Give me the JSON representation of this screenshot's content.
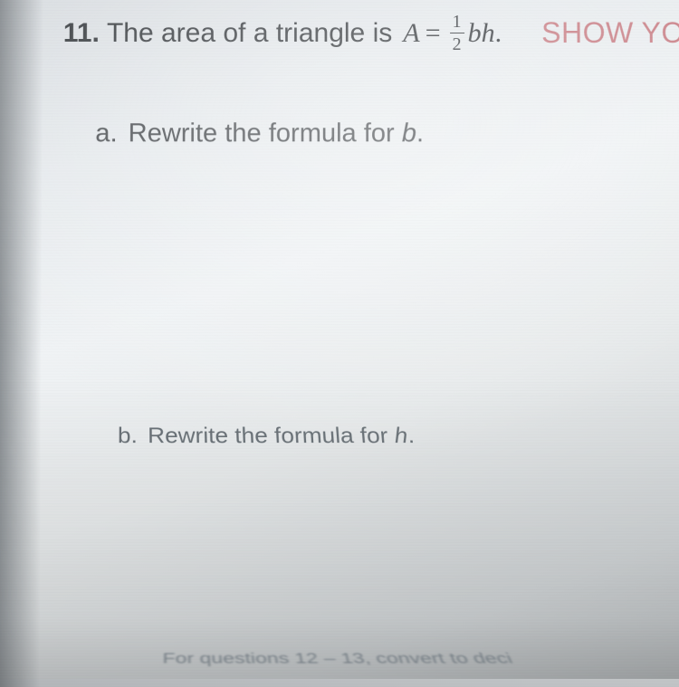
{
  "question": {
    "number": "11.",
    "prompt_before": "The area of a triangle is",
    "formula": {
      "lhs": "A",
      "eq": "=",
      "frac_num": "1",
      "frac_den": "2",
      "rhs": "bh",
      "period": "."
    },
    "show": "SHOW YO"
  },
  "parts": {
    "a": {
      "label": "a.",
      "text_before": "Rewrite the formula for",
      "var": "b",
      "period": "."
    },
    "b": {
      "label": "b.",
      "text_before": "Rewrite the formula for",
      "var": "h",
      "period": "."
    }
  },
  "footer": "For questions 12 – 13, convert to deci",
  "colors": {
    "text_main": "#3a3e42",
    "text_mid": "#4a4e52",
    "text_faded": "#6a7278",
    "text_footer": "#8a949c",
    "accent": "#c97f86"
  }
}
